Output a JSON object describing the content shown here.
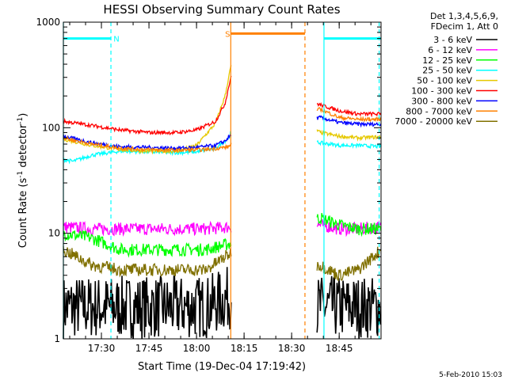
{
  "chart_data": {
    "type": "line",
    "title": "HESSI Observing Summary Count Rates",
    "xlabel": "Start Time (19-Dec-04 17:19:42)",
    "ylabel_main": "Count Rate (s",
    "ylabel_sup1": "-1",
    "ylabel_mid": " detector",
    "ylabel_sup2": "-1",
    "ylabel_end": ")",
    "yscale": "log",
    "xlim_min": [
      17.3,
      18.97
    ],
    "ylim": [
      1,
      1000
    ],
    "x_ticks": [
      {
        "v": 17.5,
        "label": "17:30"
      },
      {
        "v": 17.75,
        "label": "17:45"
      },
      {
        "v": 18.0,
        "label": "18:00"
      },
      {
        "v": 18.25,
        "label": "18:15"
      },
      {
        "v": 18.5,
        "label": "18:30"
      },
      {
        "v": 18.75,
        "label": "18:45"
      }
    ],
    "y_ticks": [
      {
        "v": 1,
        "label": "1"
      },
      {
        "v": 10,
        "label": "10"
      },
      {
        "v": 100,
        "label": "100"
      },
      {
        "v": 1000,
        "label": "1000"
      }
    ],
    "legend_header": [
      "Det 1,3,4,5,6,9,",
      "FDecim 1, Att 0"
    ],
    "legend_position": "right",
    "series": [
      {
        "name": "3 - 6 keV",
        "color": "#000000",
        "x": [
          17.3,
          17.45,
          17.6,
          17.75,
          17.9,
          18.05,
          18.18,
          18.65,
          18.75,
          18.85,
          18.97
        ],
        "y": [
          2,
          2,
          2,
          2,
          2,
          2,
          2.5,
          2,
          2,
          2,
          2
        ]
      },
      {
        "name": "6 - 12 keV",
        "color": "#ff00ff",
        "x": [
          17.3,
          17.45,
          17.6,
          17.75,
          17.9,
          18.05,
          18.18,
          18.65,
          18.75,
          18.85,
          18.97
        ],
        "y": [
          11.5,
          11,
          11,
          11,
          11,
          11,
          11.5,
          12,
          11,
          11,
          11.5
        ]
      },
      {
        "name": "12 - 25 keV",
        "color": "#00ff00",
        "x": [
          17.3,
          17.45,
          17.6,
          17.75,
          17.9,
          18.05,
          18.18,
          18.65,
          18.75,
          18.85,
          18.97
        ],
        "y": [
          10,
          9,
          7,
          7,
          7,
          7,
          8,
          14,
          12,
          11,
          11
        ]
      },
      {
        "name": "25 - 50 keV",
        "color": "#00ffff",
        "x": [
          17.3,
          17.35,
          17.45,
          17.6,
          17.75,
          17.9,
          18.0,
          18.1,
          18.17,
          18.18,
          18.65,
          18.75,
          18.85,
          18.97
        ],
        "y": [
          50,
          48,
          55,
          60,
          59,
          58,
          59,
          64,
          80,
          90,
          72,
          68,
          68,
          66
        ]
      },
      {
        "name": "50 - 100 keV",
        "color": "#e6c800",
        "x": [
          17.3,
          17.45,
          17.6,
          17.75,
          17.9,
          18.0,
          18.1,
          18.15,
          18.18,
          18.65,
          18.75,
          18.85,
          18.97
        ],
        "y": [
          78,
          68,
          62,
          60,
          60,
          68,
          110,
          200,
          380,
          90,
          83,
          80,
          82
        ]
      },
      {
        "name": "100 - 300 keV",
        "color": "#ff0000",
        "x": [
          17.3,
          17.45,
          17.6,
          17.75,
          17.9,
          18.0,
          18.1,
          18.15,
          18.18,
          18.65,
          18.75,
          18.85,
          18.97
        ],
        "y": [
          115,
          105,
          95,
          90,
          90,
          95,
          115,
          170,
          300,
          165,
          145,
          135,
          135
        ]
      },
      {
        "name": "300 - 800 keV",
        "color": "#0000ff",
        "x": [
          17.3,
          17.45,
          17.6,
          17.75,
          17.9,
          18.0,
          18.1,
          18.15,
          18.18,
          18.65,
          18.75,
          18.85,
          18.97
        ],
        "y": [
          83,
          72,
          66,
          65,
          64,
          65,
          68,
          75,
          85,
          125,
          112,
          108,
          108
        ]
      },
      {
        "name": "800 - 7000 keV",
        "color": "#ff8000",
        "x": [
          17.3,
          17.45,
          17.6,
          17.75,
          17.9,
          18.05,
          18.17,
          18.18,
          18.65,
          18.75,
          18.85,
          18.97
        ],
        "y": [
          80,
          70,
          64,
          62,
          61,
          62,
          66,
          70,
          150,
          125,
          120,
          120
        ]
      },
      {
        "name": "7000 - 20000 keV",
        "color": "#807000",
        "x": [
          17.3,
          17.45,
          17.6,
          17.75,
          17.9,
          18.05,
          18.18,
          18.65,
          18.75,
          18.85,
          18.97
        ],
        "y": [
          7,
          5,
          4.5,
          4.5,
          4.5,
          4.5,
          6.5,
          5,
          4,
          4.5,
          7
        ]
      }
    ],
    "annotations": [
      {
        "label": "N",
        "color": "#00ffff",
        "bars": [
          {
            "x0": 17.3,
            "x1": 17.55,
            "y": 700
          },
          {
            "x0": 18.67,
            "x1": 18.97,
            "y": 700
          }
        ],
        "dashed_x": [
          17.55,
          18.96
        ],
        "solid_x": [
          17.3,
          18.67
        ]
      },
      {
        "label": "S",
        "color": "#ff8000",
        "bars": [
          {
            "x0": 18.18,
            "x1": 18.57,
            "y": 780
          }
        ],
        "dashed_x": [
          18.57
        ],
        "solid_x": [
          18.18
        ]
      }
    ],
    "grid": false
  },
  "footer_date": "5-Feb-2010 15:03"
}
